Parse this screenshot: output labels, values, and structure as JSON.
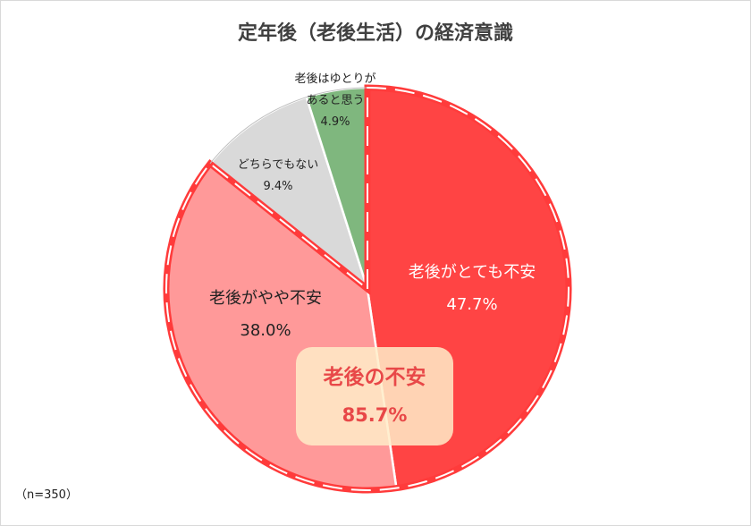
{
  "chart_data": {
    "type": "pie",
    "title": "定年後（老後生活）の経済意識",
    "start": "top",
    "direction": "clockwise",
    "slices": [
      {
        "label": "老後がとても不安",
        "value": 47.7,
        "value_label": "47.7%",
        "color": "#FF4444"
      },
      {
        "label": "老後がやや不安",
        "value": 38.0,
        "value_label": "38.0%",
        "color": "#FF9999"
      },
      {
        "label": "どちらでもない",
        "value": 9.4,
        "value_label": "9.4%",
        "color": "#D9D9D9"
      },
      {
        "label_lines": [
          "老後はゆとりが",
          "あると思う"
        ],
        "value": 4.9,
        "value_label": "4.9%",
        "color": "#7FB77E"
      }
    ],
    "annotation": {
      "label": "老後の不安",
      "value_label": "85.7%"
    },
    "note": "（n=350）"
  }
}
